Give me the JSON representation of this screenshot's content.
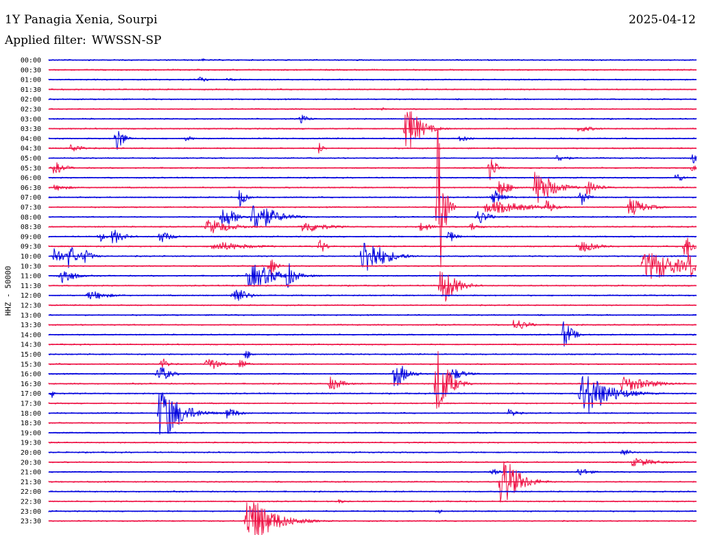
{
  "header": {
    "station": "1Y Panagia Xenia, Sourpi",
    "date": "2025-04-12",
    "filter_label": "Applied filter:",
    "filter_value": "WWSSN-SP"
  },
  "chart_data": {
    "type": "line",
    "ylabel": "HHZ - 50000",
    "colors": [
      "#0000dd",
      "#ee1144"
    ],
    "row_labels": [
      "00:00",
      "00:30",
      "01:00",
      "01:30",
      "02:00",
      "02:30",
      "03:00",
      "03:30",
      "04:00",
      "04:30",
      "05:00",
      "05:30",
      "06:00",
      "06:30",
      "07:00",
      "07:30",
      "08:00",
      "08:30",
      "09:00",
      "09:30",
      "10:00",
      "10:30",
      "11:00",
      "11:30",
      "12:00",
      "12:30",
      "13:00",
      "13:30",
      "14:00",
      "14:30",
      "15:00",
      "15:30",
      "16:00",
      "16:30",
      "17:00",
      "17:30",
      "18:00",
      "18:30",
      "19:00",
      "19:30",
      "20:00",
      "20:30",
      "21:00",
      "21:30",
      "22:00",
      "22:30",
      "23:00",
      "23:30"
    ],
    "x_unit": "minutes after trace start",
    "x_range": [
      0,
      30
    ],
    "events": [
      {
        "row": 0,
        "minute": 7.1,
        "amplitude": 2,
        "duration": 0.3
      },
      {
        "row": 2,
        "minute": 6.9,
        "amplitude": 4,
        "duration": 0.6
      },
      {
        "row": 2,
        "minute": 8.2,
        "amplitude": 2,
        "duration": 1.2
      },
      {
        "row": 4,
        "minute": 28.4,
        "amplitude": 2,
        "duration": 0.4
      },
      {
        "row": 5,
        "minute": 15.3,
        "amplitude": 4,
        "duration": 0.4
      },
      {
        "row": 6,
        "minute": 11.6,
        "amplitude": 6,
        "duration": 0.6
      },
      {
        "row": 7,
        "minute": 16.5,
        "amplitude": 30,
        "duration": 1.0
      },
      {
        "row": 7,
        "minute": 24.5,
        "amplitude": 4,
        "duration": 1.2
      },
      {
        "row": 8,
        "minute": 3.1,
        "amplitude": 18,
        "duration": 0.5
      },
      {
        "row": 8,
        "minute": 6.3,
        "amplitude": 4,
        "duration": 0.6
      },
      {
        "row": 8,
        "minute": 19.0,
        "amplitude": 4,
        "duration": 0.8
      },
      {
        "row": 9,
        "minute": 1.0,
        "amplitude": 6,
        "duration": 0.8
      },
      {
        "row": 9,
        "minute": 12.5,
        "amplitude": 8,
        "duration": 0.3
      },
      {
        "row": 10,
        "minute": 23.5,
        "amplitude": 5,
        "duration": 0.8
      },
      {
        "row": 10,
        "minute": 29.8,
        "amplitude": 8,
        "duration": 0.3
      },
      {
        "row": 11,
        "minute": 0.2,
        "amplitude": 8,
        "duration": 0.8
      },
      {
        "row": 11,
        "minute": 20.4,
        "amplitude": 20,
        "duration": 0.4
      },
      {
        "row": 11,
        "minute": 29.7,
        "amplitude": 6,
        "duration": 0.4
      },
      {
        "row": 12,
        "minute": 29.0,
        "amplitude": 6,
        "duration": 0.6
      },
      {
        "row": 13,
        "minute": 0.2,
        "amplitude": 4,
        "duration": 1.2
      },
      {
        "row": 13,
        "minute": 20.8,
        "amplitude": 12,
        "duration": 0.8
      },
      {
        "row": 13,
        "minute": 22.5,
        "amplitude": 24,
        "duration": 1.2
      },
      {
        "row": 13,
        "minute": 24.9,
        "amplitude": 10,
        "duration": 0.8
      },
      {
        "row": 14,
        "minute": 8.8,
        "amplitude": 14,
        "duration": 0.4
      },
      {
        "row": 14,
        "minute": 20.5,
        "amplitude": 10,
        "duration": 0.8
      },
      {
        "row": 14,
        "minute": 24.6,
        "amplitude": 12,
        "duration": 0.5
      },
      {
        "row": 15,
        "minute": 18.0,
        "amplitude": 120,
        "duration": 0.4
      },
      {
        "row": 15,
        "minute": 20.2,
        "amplitude": 8,
        "duration": 3.0
      },
      {
        "row": 15,
        "minute": 23.0,
        "amplitude": 10,
        "duration": 0.6
      },
      {
        "row": 15,
        "minute": 26.8,
        "amplitude": 12,
        "duration": 1.2
      },
      {
        "row": 16,
        "minute": 8.0,
        "amplitude": 14,
        "duration": 1.0
      },
      {
        "row": 16,
        "minute": 9.4,
        "amplitude": 22,
        "duration": 1.4
      },
      {
        "row": 16,
        "minute": 19.8,
        "amplitude": 10,
        "duration": 0.8
      },
      {
        "row": 17,
        "minute": 7.3,
        "amplitude": 10,
        "duration": 1.6
      },
      {
        "row": 17,
        "minute": 11.7,
        "amplitude": 8,
        "duration": 1.6
      },
      {
        "row": 17,
        "minute": 17.2,
        "amplitude": 6,
        "duration": 0.8
      },
      {
        "row": 17,
        "minute": 19.5,
        "amplitude": 6,
        "duration": 0.6
      },
      {
        "row": 18,
        "minute": 2.3,
        "amplitude": 8,
        "duration": 0.4
      },
      {
        "row": 18,
        "minute": 2.9,
        "amplitude": 10,
        "duration": 0.8
      },
      {
        "row": 18,
        "minute": 5.1,
        "amplitude": 8,
        "duration": 0.8
      },
      {
        "row": 18,
        "minute": 18.5,
        "amplitude": 8,
        "duration": 0.5
      },
      {
        "row": 19,
        "minute": 7.5,
        "amplitude": 6,
        "duration": 2.5
      },
      {
        "row": 19,
        "minute": 12.5,
        "amplitude": 10,
        "duration": 0.5
      },
      {
        "row": 19,
        "minute": 24.5,
        "amplitude": 8,
        "duration": 1.2
      },
      {
        "row": 19,
        "minute": 29.4,
        "amplitude": 16,
        "duration": 0.6
      },
      {
        "row": 20,
        "minute": 0.2,
        "amplitude": 14,
        "duration": 0.6
      },
      {
        "row": 20,
        "minute": 0.9,
        "amplitude": 18,
        "duration": 0.5
      },
      {
        "row": 20,
        "minute": 1.5,
        "amplitude": 12,
        "duration": 0.6
      },
      {
        "row": 20,
        "minute": 14.5,
        "amplitude": 26,
        "duration": 1.4
      },
      {
        "row": 21,
        "minute": 10.2,
        "amplitude": 18,
        "duration": 0.4
      },
      {
        "row": 21,
        "minute": 27.5,
        "amplitude": 20,
        "duration": 2.5
      },
      {
        "row": 21,
        "minute": 29.6,
        "amplitude": 24,
        "duration": 0.4
      },
      {
        "row": 22,
        "minute": 0.5,
        "amplitude": 14,
        "duration": 0.8
      },
      {
        "row": 22,
        "minute": 9.2,
        "amplitude": 16,
        "duration": 2.0
      },
      {
        "row": 22,
        "minute": 11.0,
        "amplitude": 18,
        "duration": 0.6
      },
      {
        "row": 23,
        "minute": 18.1,
        "amplitude": 26,
        "duration": 1.0
      },
      {
        "row": 24,
        "minute": 1.8,
        "amplitude": 6,
        "duration": 1.4
      },
      {
        "row": 24,
        "minute": 8.5,
        "amplitude": 14,
        "duration": 0.8
      },
      {
        "row": 27,
        "minute": 21.5,
        "amplitude": 8,
        "duration": 1.0
      },
      {
        "row": 28,
        "minute": 23.8,
        "amplitude": 20,
        "duration": 0.6
      },
      {
        "row": 30,
        "minute": 9.1,
        "amplitude": 6,
        "duration": 0.5
      },
      {
        "row": 31,
        "minute": 5.2,
        "amplitude": 8,
        "duration": 0.5
      },
      {
        "row": 31,
        "minute": 7.3,
        "amplitude": 10,
        "duration": 0.8
      },
      {
        "row": 31,
        "minute": 8.8,
        "amplitude": 8,
        "duration": 0.5
      },
      {
        "row": 32,
        "minute": 5.0,
        "amplitude": 12,
        "duration": 0.8
      },
      {
        "row": 32,
        "minute": 16.0,
        "amplitude": 18,
        "duration": 0.8
      },
      {
        "row": 32,
        "minute": 18.6,
        "amplitude": 8,
        "duration": 1.0
      },
      {
        "row": 33,
        "minute": 13.0,
        "amplitude": 10,
        "duration": 0.8
      },
      {
        "row": 33,
        "minute": 17.9,
        "amplitude": 50,
        "duration": 0.8
      },
      {
        "row": 33,
        "minute": 26.5,
        "amplitude": 10,
        "duration": 2.0
      },
      {
        "row": 34,
        "minute": 0.1,
        "amplitude": 8,
        "duration": 0.3
      },
      {
        "row": 34,
        "minute": 24.6,
        "amplitude": 30,
        "duration": 1.8
      },
      {
        "row": 36,
        "minute": 5.1,
        "amplitude": 36,
        "duration": 1.4
      },
      {
        "row": 36,
        "minute": 8.2,
        "amplitude": 8,
        "duration": 0.8
      },
      {
        "row": 36,
        "minute": 21.3,
        "amplitude": 6,
        "duration": 0.6
      },
      {
        "row": 40,
        "minute": 26.5,
        "amplitude": 6,
        "duration": 0.6
      },
      {
        "row": 41,
        "minute": 27.0,
        "amplitude": 6,
        "duration": 1.6
      },
      {
        "row": 42,
        "minute": 20.5,
        "amplitude": 6,
        "duration": 0.6
      },
      {
        "row": 42,
        "minute": 24.5,
        "amplitude": 6,
        "duration": 0.8
      },
      {
        "row": 43,
        "minute": 20.9,
        "amplitude": 34,
        "duration": 1.2
      },
      {
        "row": 45,
        "minute": 13.4,
        "amplitude": 3,
        "duration": 0.5
      },
      {
        "row": 46,
        "minute": 18.0,
        "amplitude": 4,
        "duration": 0.3
      },
      {
        "row": 47,
        "minute": 9.1,
        "amplitude": 32,
        "duration": 1.8
      }
    ]
  }
}
